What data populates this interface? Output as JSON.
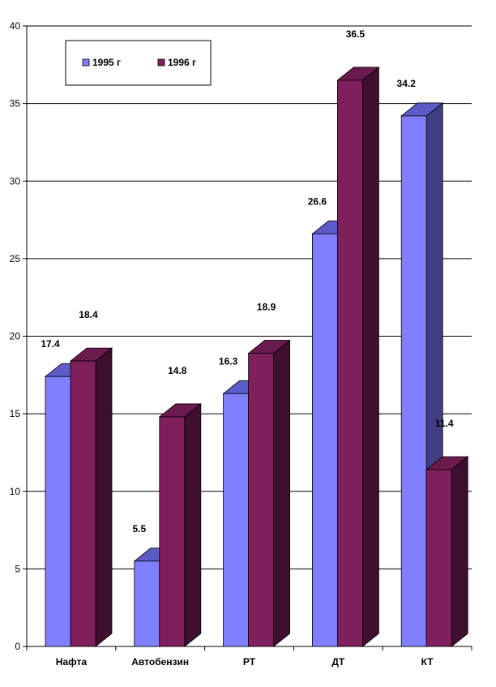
{
  "chart_data": {
    "type": "bar",
    "title": "",
    "xlabel": "",
    "ylabel": "",
    "ylim": [
      0,
      40
    ],
    "yticks": [
      0,
      5,
      10,
      15,
      20,
      25,
      30,
      35,
      40
    ],
    "grid": true,
    "legend_position": "top-left",
    "three_d": true,
    "categories": [
      "Нафта",
      "Автобензин",
      "РТ",
      "ДТ",
      "КТ"
    ],
    "series": [
      {
        "name": "1995 г",
        "values": [
          17.4,
          5.5,
          16.3,
          26.6,
          34.2
        ],
        "color": "#8080ff",
        "top_color": "#5c5cc8",
        "side_color": "#3f3f80"
      },
      {
        "name": "1996 г",
        "values": [
          18.4,
          14.8,
          18.9,
          36.5,
          11.4
        ],
        "color": "#7f1f5b",
        "top_color": "#6a1a4c",
        "side_color": "#3f0f2f"
      }
    ],
    "data_labels": [
      [
        "17.4",
        "5.5",
        "16.3",
        "26.6",
        "34.2"
      ],
      [
        "18.4",
        "14.8",
        "18.9",
        "36.5",
        "11.4"
      ]
    ]
  }
}
